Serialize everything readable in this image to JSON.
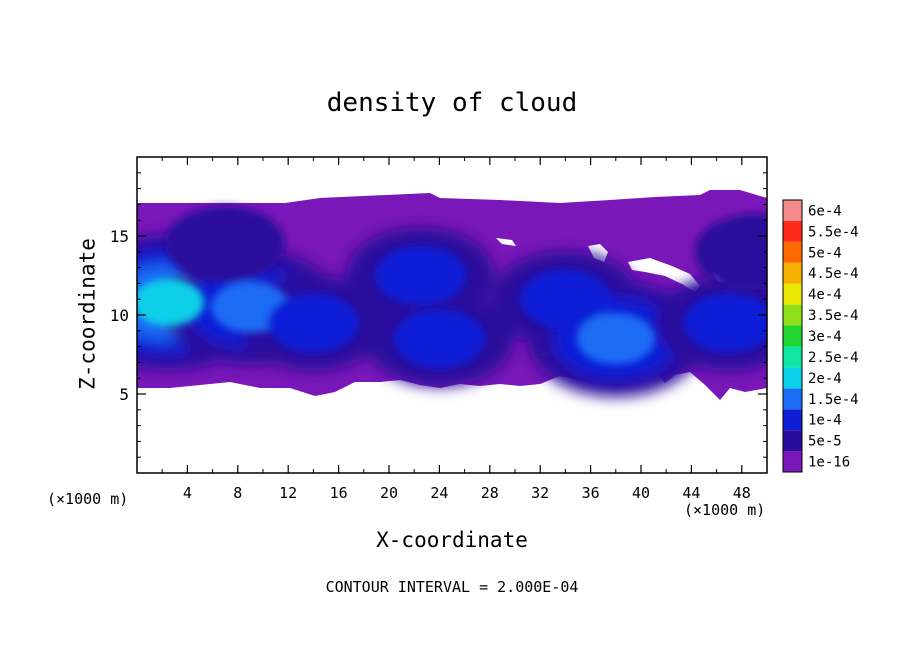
{
  "chart_data": {
    "type": "heatmap",
    "title": "density of cloud",
    "xlabel": "X-coordinate",
    "ylabel": "Z-coordinate",
    "x_unit_left": "(×1000 m)",
    "x_unit_right": "(×1000 m)",
    "footer": "CONTOUR INTERVAL = 2.000E-04",
    "xlim": [
      0,
      50
    ],
    "ylim": [
      0,
      20
    ],
    "x_ticks": [
      4,
      8,
      12,
      16,
      20,
      24,
      28,
      32,
      36,
      40,
      44,
      48
    ],
    "x_tick_labels": [
      "4",
      "8",
      "12",
      "16",
      "20",
      "24",
      "28",
      "32",
      "36",
      "40",
      "44",
      "48"
    ],
    "y_ticks": [
      5,
      10,
      15
    ],
    "y_tick_labels": [
      "5",
      "10",
      "15"
    ],
    "colorbar": {
      "labels": [
        "1e-16",
        "5e-5",
        "1e-4",
        "1.5e-4",
        "2e-4",
        "2.5e-4",
        "3e-4",
        "3.5e-4",
        "4e-4",
        "4.5e-4",
        "5e-4",
        "5.5e-4",
        "6e-4"
      ],
      "colors": [
        "#7a17b8",
        "#2a0b9c",
        "#0f1ed6",
        "#1a6cf5",
        "#0bd0e8",
        "#12e6a6",
        "#1fd633",
        "#8fe01a",
        "#e8e800",
        "#f5b000",
        "#ff6a00",
        "#ff2a1a",
        "#f58a8a"
      ]
    },
    "cloud_layer": {
      "z_bottom_approx": 5.5,
      "z_top_approx": 17
    },
    "cells": [
      {
        "x": 2.5,
        "z": 10.8,
        "value": 0.00019
      },
      {
        "x": 9,
        "z": 10.5,
        "value": 0.00015
      },
      {
        "x": 14,
        "z": 9.5,
        "value": 0.00012
      },
      {
        "x": 7,
        "z": 14.5,
        "value": 7e-05
      },
      {
        "x": 22.5,
        "z": 12.5,
        "value": 8e-05
      },
      {
        "x": 24,
        "z": 8.5,
        "value": 0.00012
      },
      {
        "x": 34,
        "z": 11,
        "value": 0.0001
      },
      {
        "x": 38,
        "z": 8.5,
        "value": 0.00015
      },
      {
        "x": 47,
        "z": 9.5,
        "value": 0.0001
      },
      {
        "x": 49,
        "z": 14,
        "value": 6e-05
      },
      {
        "x": 30,
        "z": 15.5,
        "value": 1e-16
      },
      {
        "x": 42,
        "z": 16,
        "value": 1e-16
      }
    ]
  }
}
